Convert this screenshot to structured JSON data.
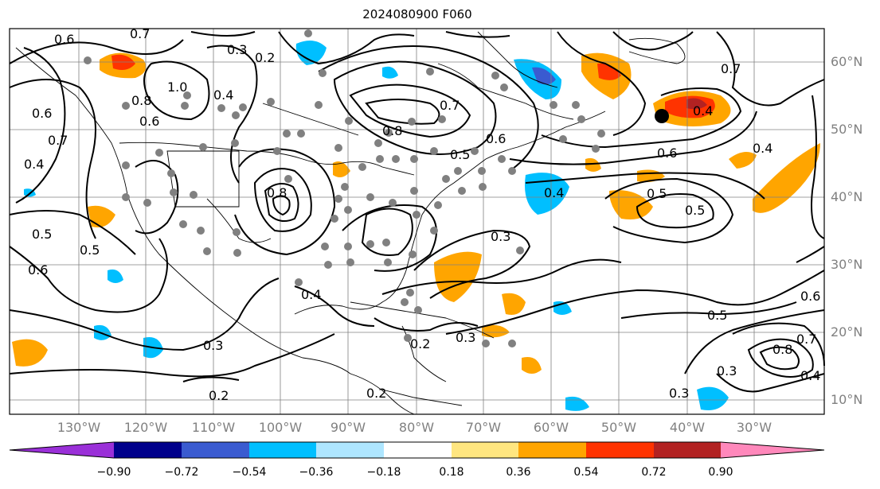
{
  "title": "2024080900 F060",
  "lon_labels": [
    "130°W",
    "120°W",
    "110°W",
    "100°W",
    "90°W",
    "80°W",
    "70°W",
    "60°W",
    "50°W",
    "40°W",
    "30°W"
  ],
  "lat_labels": [
    "60°N",
    "50°N",
    "40°N",
    "30°N",
    "20°N",
    "10°N"
  ],
  "colorbar": {
    "ticks": [
      "−0.90",
      "−0.72",
      "−0.54",
      "−0.36",
      "−0.18",
      "0.18",
      "0.36",
      "0.54",
      "0.72",
      "0.90"
    ],
    "colors": [
      "#9a30d8",
      "#00008b",
      "#3a5bd0",
      "#00bfff",
      "#aee6ff",
      "#ffffff",
      "#ffe680",
      "#ffa500",
      "#ff3300",
      "#b22222",
      "#ff88bb"
    ]
  },
  "contour_labels": [
    "0.7",
    "0.6",
    "0.3",
    "0.2",
    "1.0",
    "0.8",
    "0.6",
    "0.4",
    "0.6",
    "0.7",
    "0.8",
    "0.7",
    "0.5",
    "0.6",
    "0.4",
    "0.5",
    "0.4",
    "0.6",
    "0.5",
    "0.5",
    "0.6",
    "0.3",
    "0.4",
    "0.3",
    "0.2",
    "0.2",
    "0.3",
    "0.5",
    "0.5",
    "0.3",
    "0.8",
    "0.7",
    "0.4",
    "0.3",
    "0.2",
    "0.7",
    "0.4",
    "0.6",
    "0.8",
    "0.4"
  ],
  "colors": {
    "contour": "#000000",
    "coast": "#000000",
    "grid": "#808080",
    "station": "#808080",
    "warm": "#ffa500",
    "hot": "#ff3300",
    "cold": "#00bfff",
    "deep": "#3a5bd0"
  }
}
